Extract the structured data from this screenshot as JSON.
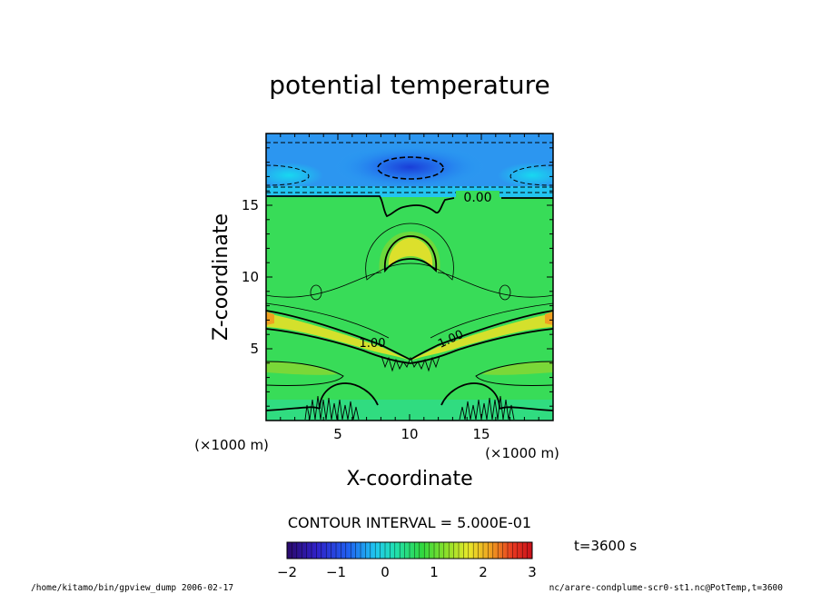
{
  "chart_data": {
    "type": "heatmap",
    "title": "potential temperature",
    "xlabel": "X-coordinate",
    "ylabel": "Z-coordinate",
    "x_unit": "(×1000 m)",
    "y_unit": "(×1000 m)",
    "xlim": [
      0,
      20
    ],
    "ylim": [
      0,
      20
    ],
    "x_ticks": [
      5,
      10,
      15
    ],
    "y_ticks": [
      5,
      10,
      15
    ],
    "contour_interval_text": "CONTOUR INTERVAL = 5.000E-01",
    "contour_labels": [
      "0.00",
      "1.00",
      "1.00"
    ],
    "colorbar": {
      "min": -2,
      "max": 3,
      "ticks": [
        "−2",
        "−1",
        "0",
        "1",
        "2",
        "3"
      ]
    },
    "time_label": "t=3600 s",
    "footer_left": "/home/kitamo/bin/gpview_dump  2006-02-17",
    "footer_right": "nc/arare-condplume-scr0-st1.nc@PotTemp,t=3600"
  },
  "colors": {
    "background": "#ffffff",
    "field_upper_blue": "#2b8cf0",
    "field_core_blue": "#1a50e0",
    "field_cyan": "#20c8f0",
    "field_green": "#38dc58",
    "field_yellow": "#e8e82a",
    "field_orange": "#f0a020"
  }
}
